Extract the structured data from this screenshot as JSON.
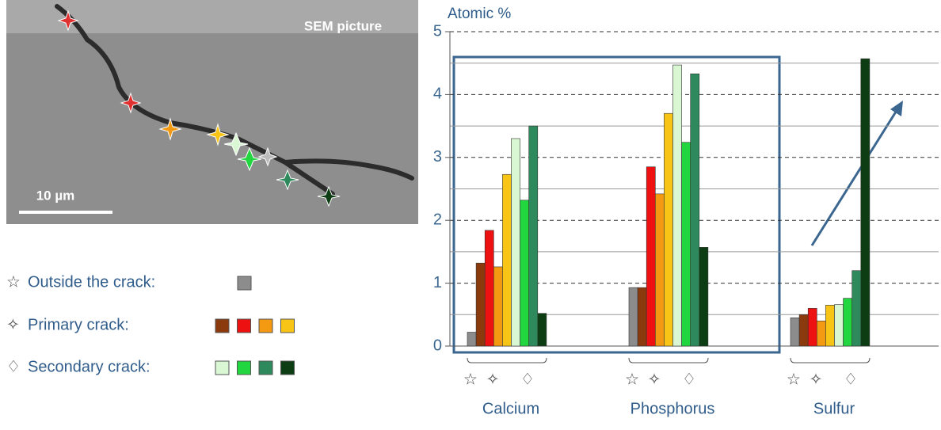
{
  "image": {
    "title": "SEM picture",
    "scale_label": "10 µm"
  },
  "legend": [
    "Outside the crack:",
    "Primary crack:",
    "Secondary crack:"
  ],
  "chart_data": {
    "type": "bar",
    "ylabel": "Atomic %",
    "categories": [
      "Calcium",
      "Phosphorus",
      "Sulfur"
    ],
    "ylim": [
      0,
      5
    ],
    "yticks": [
      0,
      1,
      2,
      3,
      4,
      5
    ],
    "minor_grid": [
      0.5,
      1.5,
      2.5,
      3.5,
      4.5
    ],
    "groups": [
      {
        "series": [
          {
            "color": "#8c8c8c",
            "values": [
              0.22,
              0.93,
              0.45
            ]
          }
        ]
      },
      {
        "series": [
          {
            "color": "#8b3a0e",
            "values": [
              1.32,
              0.93,
              0.5
            ]
          },
          {
            "color": "#ee1111",
            "values": [
              1.84,
              2.85,
              0.6
            ]
          },
          {
            "color": "#f39a12",
            "values": [
              1.26,
              2.42,
              0.4
            ]
          },
          {
            "color": "#f8c517",
            "values": [
              2.73,
              3.7,
              0.65
            ]
          }
        ]
      },
      {
        "series": [
          {
            "color": "#d8f7d2",
            "values": [
              3.3,
              4.47,
              0.66
            ]
          },
          {
            "color": "#22d640",
            "values": [
              2.32,
              3.24,
              0.76
            ]
          },
          {
            "color": "#2e8a5c",
            "values": [
              3.5,
              4.33,
              1.2
            ]
          },
          {
            "color": "#0d3d12",
            "values": [
              0.52,
              1.57,
              4.57
            ]
          }
        ]
      }
    ]
  }
}
